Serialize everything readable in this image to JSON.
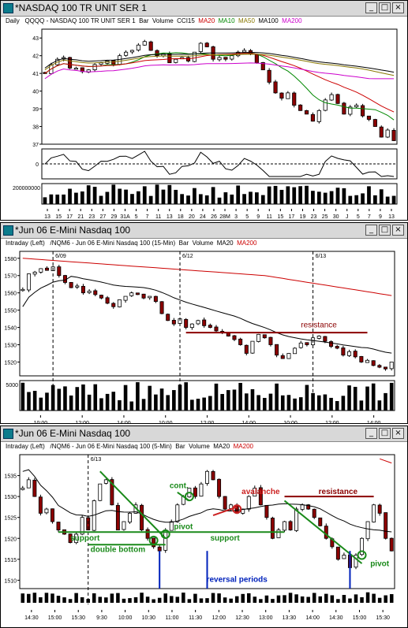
{
  "windows": [
    {
      "title": "*NASDAQ 100 TR UNIT SER 1",
      "info": {
        "period": "Daily",
        "symbol": "QQQQ - NASDAQ 100 TR UNIT SER 1",
        "type": "Bar",
        "volume": "Volume",
        "indicators": [
          "CCI15",
          "MA20",
          "MA10",
          "MA50",
          "MA100",
          "MA200"
        ]
      },
      "colors": {
        "CCI15": "#000000",
        "MA20": "#cc0000",
        "MA10": "#008800",
        "MA50": "#887700",
        "MA100": "#000000",
        "MA200": "#cc00cc"
      }
    },
    {
      "title": "*Jun 06  E-Mini Nasdaq 100",
      "info": {
        "period": "Intraday (Left)",
        "symbol": "/NQM6 - Jun 06 E-Mini Nasdaq 100 (15-Min)",
        "type": "Bar",
        "volume": "Volume",
        "indicators": [
          "MA20",
          "MA200"
        ]
      },
      "colors": {
        "MA20": "#000000",
        "MA200": "#cc0000"
      }
    },
    {
      "title": "*Jun 06  E-Mini Nasdaq 100",
      "info": {
        "period": "Intraday (Left)",
        "symbol": "/NQM6 - Jun 06 E-Mini Nasdaq 100 (5-Min)",
        "type": "Bar",
        "volume": "Volume",
        "indicators": [
          "MA20",
          "MA200"
        ]
      },
      "colors": {
        "MA20": "#000000",
        "MA200": "#cc0000"
      }
    }
  ],
  "chart_data": [
    {
      "type": "candlestick",
      "ylim": [
        37,
        43.5
      ],
      "yticks": [
        "43",
        "42",
        "41",
        "40",
        "39",
        "38",
        "37"
      ],
      "cci_ticks": [
        "0"
      ],
      "volume_ticks": [
        "200000000"
      ],
      "xticks": [
        "13",
        "15",
        "17",
        "21",
        "23",
        "27",
        "29",
        "31A",
        "5",
        "7",
        "11",
        "13",
        "18",
        "20",
        "24",
        "26",
        "28M",
        "3",
        "5",
        "9",
        "11",
        "15",
        "17",
        "19",
        "23",
        "25",
        "30",
        "J",
        "5",
        "7",
        "9",
        "13"
      ],
      "close": [
        41.0,
        41.5,
        41.8,
        41.9,
        41.3,
        41.3,
        41.1,
        41.2,
        41.5,
        41.6,
        41.7,
        41.5,
        42.0,
        42.2,
        42.3,
        42.6,
        42.8,
        42.3,
        42.0,
        42.1,
        41.6,
        41.8,
        41.9,
        41.7,
        42.2,
        42.7,
        42.5,
        41.8,
        41.9,
        41.8,
        42.0,
        42.2,
        42.3,
        42.1,
        41.6,
        41.2,
        40.5,
        39.9,
        39.6,
        39.9,
        39.2,
        38.9,
        38.7,
        38.3,
        38.9,
        39.5,
        39.8,
        39.3,
        38.7,
        39.1,
        39.2,
        38.6,
        38.4,
        38.0,
        37.4,
        37.8,
        37.2
      ]
    },
    {
      "type": "candlestick",
      "ylim": [
        1512,
        1584
      ],
      "yticks": [
        "1580",
        "1570",
        "1560",
        "1550",
        "1540",
        "1530",
        "1520"
      ],
      "volume_ticks": [
        "5000"
      ],
      "xticks": [
        "10:00",
        "12:00",
        "14:00",
        "10:00",
        "12:00",
        "14:00",
        "10:00",
        "12:00",
        "14:00"
      ],
      "date_labels": [
        "6/09",
        "6/12",
        "6/13"
      ],
      "annotations": [
        "resistance"
      ],
      "close": [
        1562,
        1571,
        1572,
        1574,
        1573,
        1575,
        1570,
        1566,
        1563,
        1564,
        1560,
        1561,
        1559,
        1557,
        1554,
        1552,
        1556,
        1558,
        1560,
        1559,
        1557,
        1558,
        1555,
        1548,
        1544,
        1542,
        1545,
        1540,
        1542,
        1544,
        1541,
        1540,
        1538,
        1537,
        1535,
        1533,
        1530,
        1525,
        1532,
        1536,
        1534,
        1530,
        1524,
        1522,
        1525,
        1528,
        1531,
        1530,
        1534,
        1535,
        1532,
        1529,
        1528,
        1524,
        1526,
        1523,
        1520,
        1521,
        1518,
        1517,
        1516,
        1520
      ]
    },
    {
      "type": "candlestick",
      "ylim": [
        1508,
        1540
      ],
      "yticks": [
        "1535",
        "1530",
        "1525",
        "1520",
        "1515",
        "1510"
      ],
      "xticks": [
        "14:30",
        "15:00",
        "15:30",
        "9:30",
        "10:00",
        "10:30",
        "11:00",
        "11:30",
        "12:00",
        "12:30",
        "13:00",
        "13:30",
        "14:00",
        "14:30",
        "15:00",
        "15:30"
      ],
      "date_labels": [
        "6/13"
      ],
      "annotations": [
        "support",
        "double bottom",
        "cont.",
        "pivot",
        "support",
        "avalanche",
        "resistance",
        "pivot",
        "reversal periods"
      ],
      "close": [
        1532,
        1534,
        1530,
        1526,
        1527,
        1524,
        1522,
        1521,
        1519,
        1521,
        1525,
        1522,
        1529,
        1533,
        1534,
        1528,
        1522,
        1524,
        1526,
        1528,
        1522,
        1520,
        1518,
        1517,
        1522,
        1524,
        1528,
        1530,
        1532,
        1530,
        1533,
        1536,
        1534,
        1530,
        1527,
        1528,
        1526,
        1527,
        1530,
        1532,
        1528,
        1525,
        1520,
        1522,
        1524,
        1522,
        1527,
        1528,
        1527,
        1525,
        1523,
        1520,
        1518,
        1515,
        1516,
        1513,
        1516,
        1520,
        1524,
        1528,
        1526,
        1520,
        1517
      ]
    }
  ]
}
